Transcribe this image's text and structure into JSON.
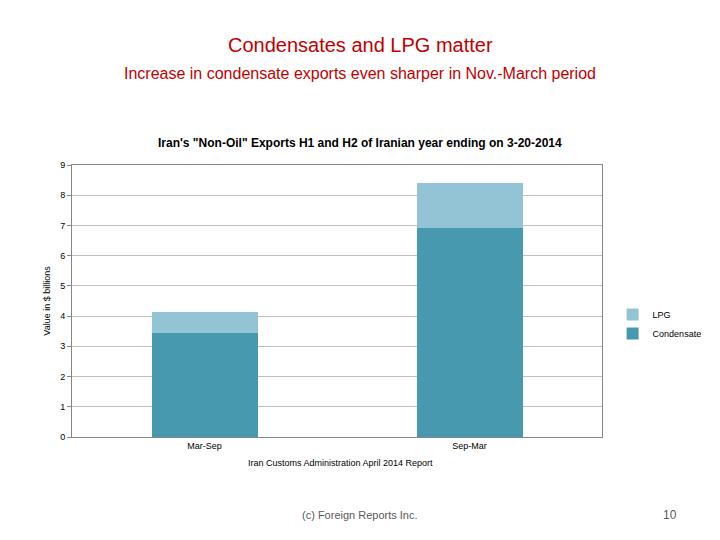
{
  "chart_data": {
    "type": "bar",
    "stacked": true,
    "title": "Condensates and LPG matter",
    "subtitle": "Increase in condensate exports even sharper in Nov.-March period",
    "annotations": {
      "chart_title": "Iran's \"Non-Oil\" Exports H1 and H2 of Iranian year ending on 3-20-2014",
      "source": "Iran Customs Administration April 2014 Report",
      "footer": "(c) Foreign Reports Inc.",
      "page": "10"
    },
    "y_label": "Value in $ billions",
    "categories": [
      "Mar-Sep",
      "Sep-Mar"
    ],
    "series": [
      {
        "name": "Condensate",
        "color": "#4699ae",
        "values": [
          3.45,
          6.9
        ]
      },
      {
        "name": "LPG",
        "color": "#93c4d6",
        "values": [
          0.7,
          1.5
        ]
      }
    ],
    "ylim": [
      0,
      9
    ],
    "yticks": [
      0,
      1,
      2,
      3,
      4,
      5,
      6,
      7,
      8,
      9
    ],
    "grid": true,
    "legend": "right"
  }
}
